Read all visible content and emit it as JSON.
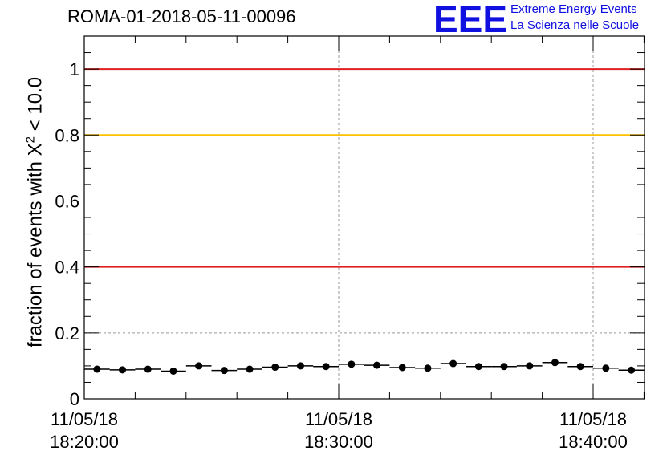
{
  "header": {
    "title": "ROMA-01-2018-05-11-00096",
    "logo_letters": "EEE",
    "logo_line1": "Extreme Energy Events",
    "logo_line2": "La Scienza nelle Scuole"
  },
  "chart_data": {
    "type": "scatter",
    "title": "ROMA-01-2018-05-11-00096",
    "ylabel_prefix": "fraction of events with X",
    "ylabel_sup": "2",
    "ylabel_suffix": " < 10.0",
    "xlabel": "",
    "ylim": [
      0,
      1.1
    ],
    "xlim_minutes": [
      0,
      22.5
    ],
    "y_ticks": [
      0,
      0.2,
      0.4,
      0.6,
      0.8,
      1
    ],
    "y_tick_labels": [
      "0",
      "0.2",
      "0.4",
      "0.6",
      "0.8",
      "1"
    ],
    "x_ticks": [
      {
        "minute": 0,
        "date": "11/05/18",
        "time": "18:20:00"
      },
      {
        "minute": 10,
        "date": "11/05/18",
        "time": "18:30:00"
      },
      {
        "minute": 20,
        "date": "11/05/18",
        "time": "18:40:00"
      }
    ],
    "grid": true,
    "reference_lines": [
      {
        "y": 1.0,
        "color": "#e02020"
      },
      {
        "y": 0.8,
        "color": "#ffc000"
      },
      {
        "y": 0.4,
        "color": "#e02020"
      }
    ],
    "bin_width_minutes": 1,
    "points": [
      {
        "x": 0.5,
        "y": 0.09
      },
      {
        "x": 1.5,
        "y": 0.088
      },
      {
        "x": 2.5,
        "y": 0.09
      },
      {
        "x": 3.5,
        "y": 0.084
      },
      {
        "x": 4.5,
        "y": 0.1
      },
      {
        "x": 5.5,
        "y": 0.086
      },
      {
        "x": 6.5,
        "y": 0.09
      },
      {
        "x": 7.5,
        "y": 0.096
      },
      {
        "x": 8.5,
        "y": 0.1
      },
      {
        "x": 9.5,
        "y": 0.098
      },
      {
        "x": 10.5,
        "y": 0.105
      },
      {
        "x": 11.5,
        "y": 0.102
      },
      {
        "x": 12.5,
        "y": 0.095
      },
      {
        "x": 13.5,
        "y": 0.093
      },
      {
        "x": 14.5,
        "y": 0.107
      },
      {
        "x": 15.5,
        "y": 0.098
      },
      {
        "x": 16.5,
        "y": 0.098
      },
      {
        "x": 17.5,
        "y": 0.1
      },
      {
        "x": 18.5,
        "y": 0.11
      },
      {
        "x": 19.5,
        "y": 0.098
      },
      {
        "x": 20.5,
        "y": 0.093
      },
      {
        "x": 21.5,
        "y": 0.087
      }
    ]
  }
}
